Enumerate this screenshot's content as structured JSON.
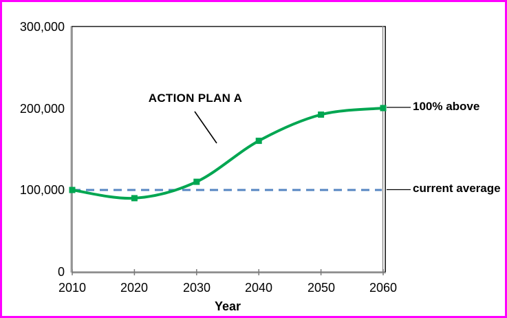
{
  "frame": {
    "border_color": "#ff00ff",
    "background": "#ffffff"
  },
  "chart_data": {
    "type": "line",
    "title": "",
    "xlabel": "Year",
    "ylabel": "",
    "x": [
      2010,
      2020,
      2030,
      2040,
      2050,
      2060
    ],
    "series": [
      {
        "name": "ACTION PLAN A",
        "values": [
          100000,
          90000,
          110000,
          160000,
          192000,
          200000
        ],
        "color": "#00a651",
        "marker": "square",
        "smooth": true
      }
    ],
    "reference_line": {
      "label": "current average",
      "value": 100000,
      "color": "#5585c2",
      "style": "dashed"
    },
    "x_ticks": [
      "2010",
      "2020",
      "2030",
      "2040",
      "2050",
      "2060"
    ],
    "y_ticks": [
      "0",
      "100,000",
      "200,000",
      "300,000"
    ],
    "xlim": [
      2010,
      2060
    ],
    "ylim": [
      0,
      300000
    ],
    "grid": false,
    "legend": "none"
  },
  "annotations": {
    "series_label": "ACTION PLAN A",
    "above_label": "100% above",
    "average_label": "current average"
  }
}
